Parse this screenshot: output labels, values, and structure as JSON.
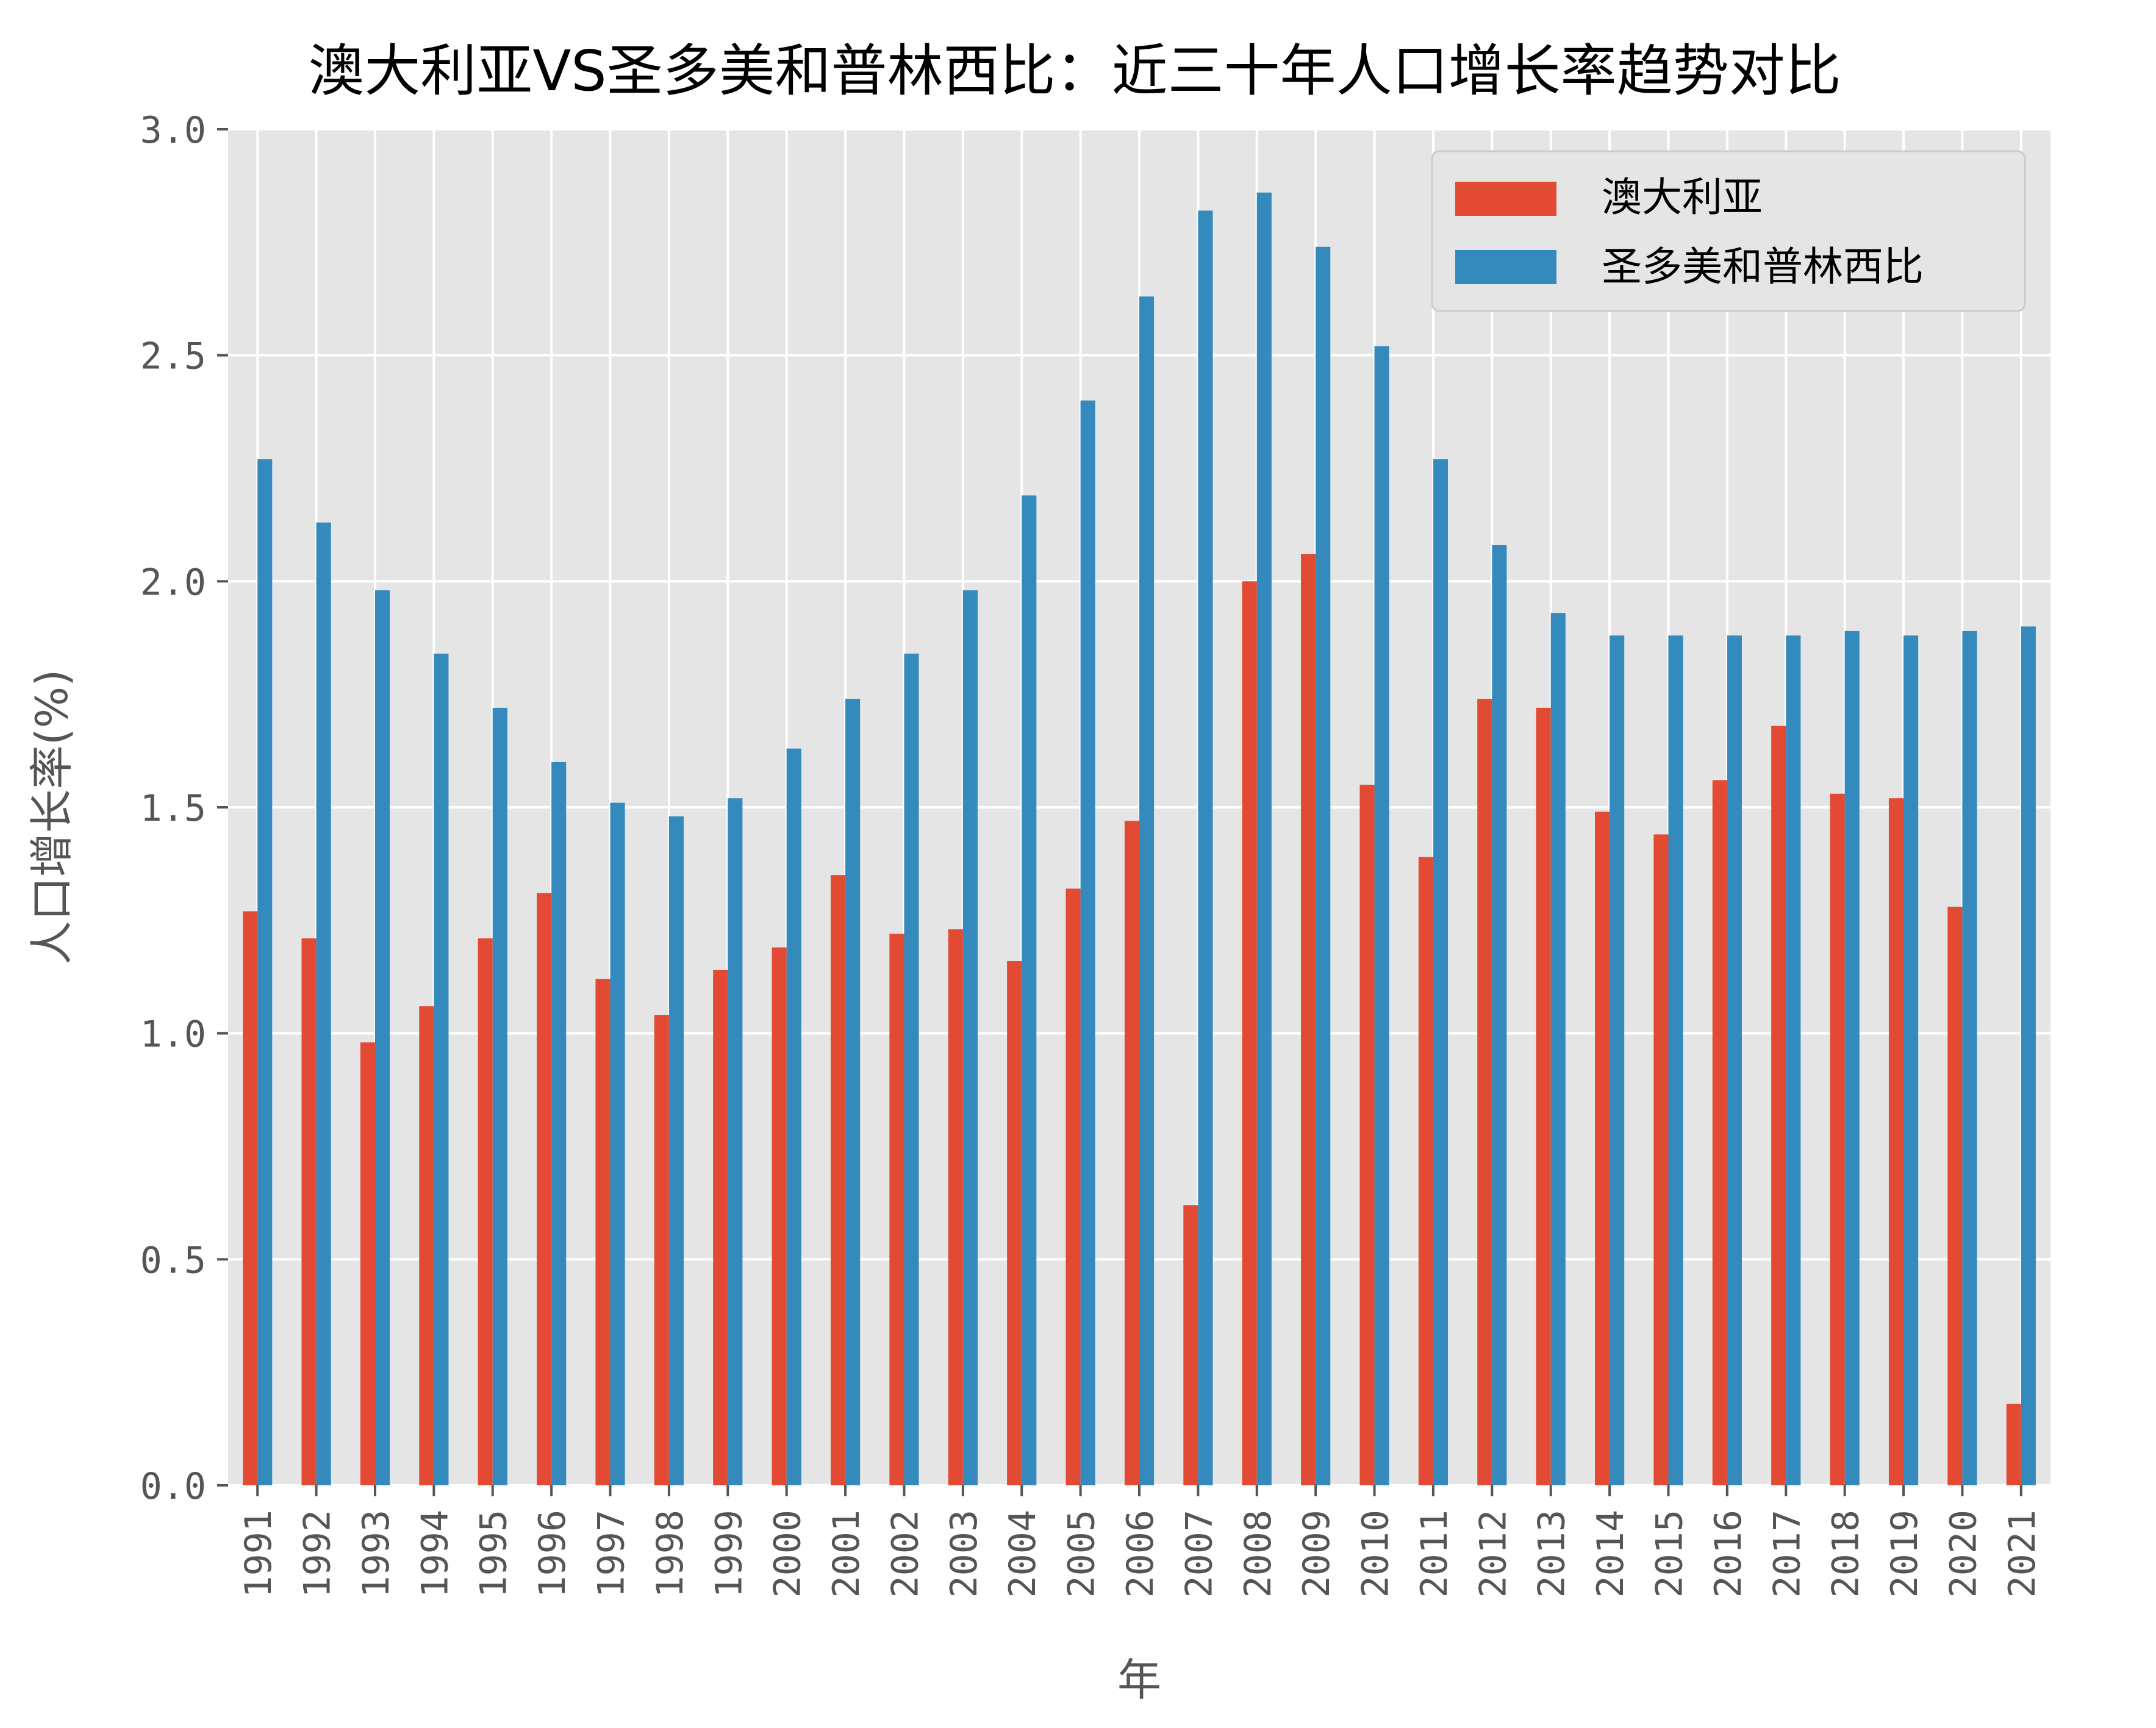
{
  "chart_data": {
    "type": "bar",
    "title": "澳大利亚VS圣多美和普林西比：近三十年人口增长率趋势对比",
    "xlabel": "年",
    "ylabel": "人口增长率(%)",
    "ylim": [
      0,
      3.0
    ],
    "yticks": [
      "0.0",
      "0.5",
      "1.0",
      "1.5",
      "2.0",
      "2.5",
      "3.0"
    ],
    "grid": true,
    "legend_position": "top-right",
    "categories": [
      "1991",
      "1992",
      "1993",
      "1994",
      "1995",
      "1996",
      "1997",
      "1998",
      "1999",
      "2000",
      "2001",
      "2002",
      "2003",
      "2004",
      "2005",
      "2006",
      "2007",
      "2008",
      "2009",
      "2010",
      "2011",
      "2012",
      "2013",
      "2014",
      "2015",
      "2016",
      "2017",
      "2018",
      "2019",
      "2020",
      "2021"
    ],
    "series": [
      {
        "name": "澳大利亚",
        "color": "#E24A33",
        "values": [
          1.27,
          1.21,
          0.98,
          1.06,
          1.21,
          1.31,
          1.12,
          1.04,
          1.14,
          1.19,
          1.35,
          1.22,
          1.23,
          1.16,
          1.32,
          1.47,
          0.62,
          2.0,
          2.06,
          1.55,
          1.39,
          1.74,
          1.72,
          1.49,
          1.44,
          1.56,
          1.68,
          1.53,
          1.52,
          1.28,
          0.18
        ]
      },
      {
        "name": "圣多美和普林西比",
        "color": "#348ABD",
        "values": [
          2.27,
          2.13,
          1.98,
          1.84,
          1.72,
          1.6,
          1.51,
          1.48,
          1.52,
          1.63,
          1.74,
          1.84,
          1.98,
          2.19,
          2.4,
          2.63,
          2.82,
          2.86,
          2.74,
          2.52,
          2.27,
          2.08,
          1.93,
          1.88,
          1.88,
          1.88,
          1.88,
          1.89,
          1.88,
          1.89,
          1.9
        ]
      }
    ]
  },
  "colors": {
    "plot_background": "#E5E5E5",
    "grid": "#FFFFFF",
    "tick_label": "#555555",
    "title": "#000000"
  }
}
